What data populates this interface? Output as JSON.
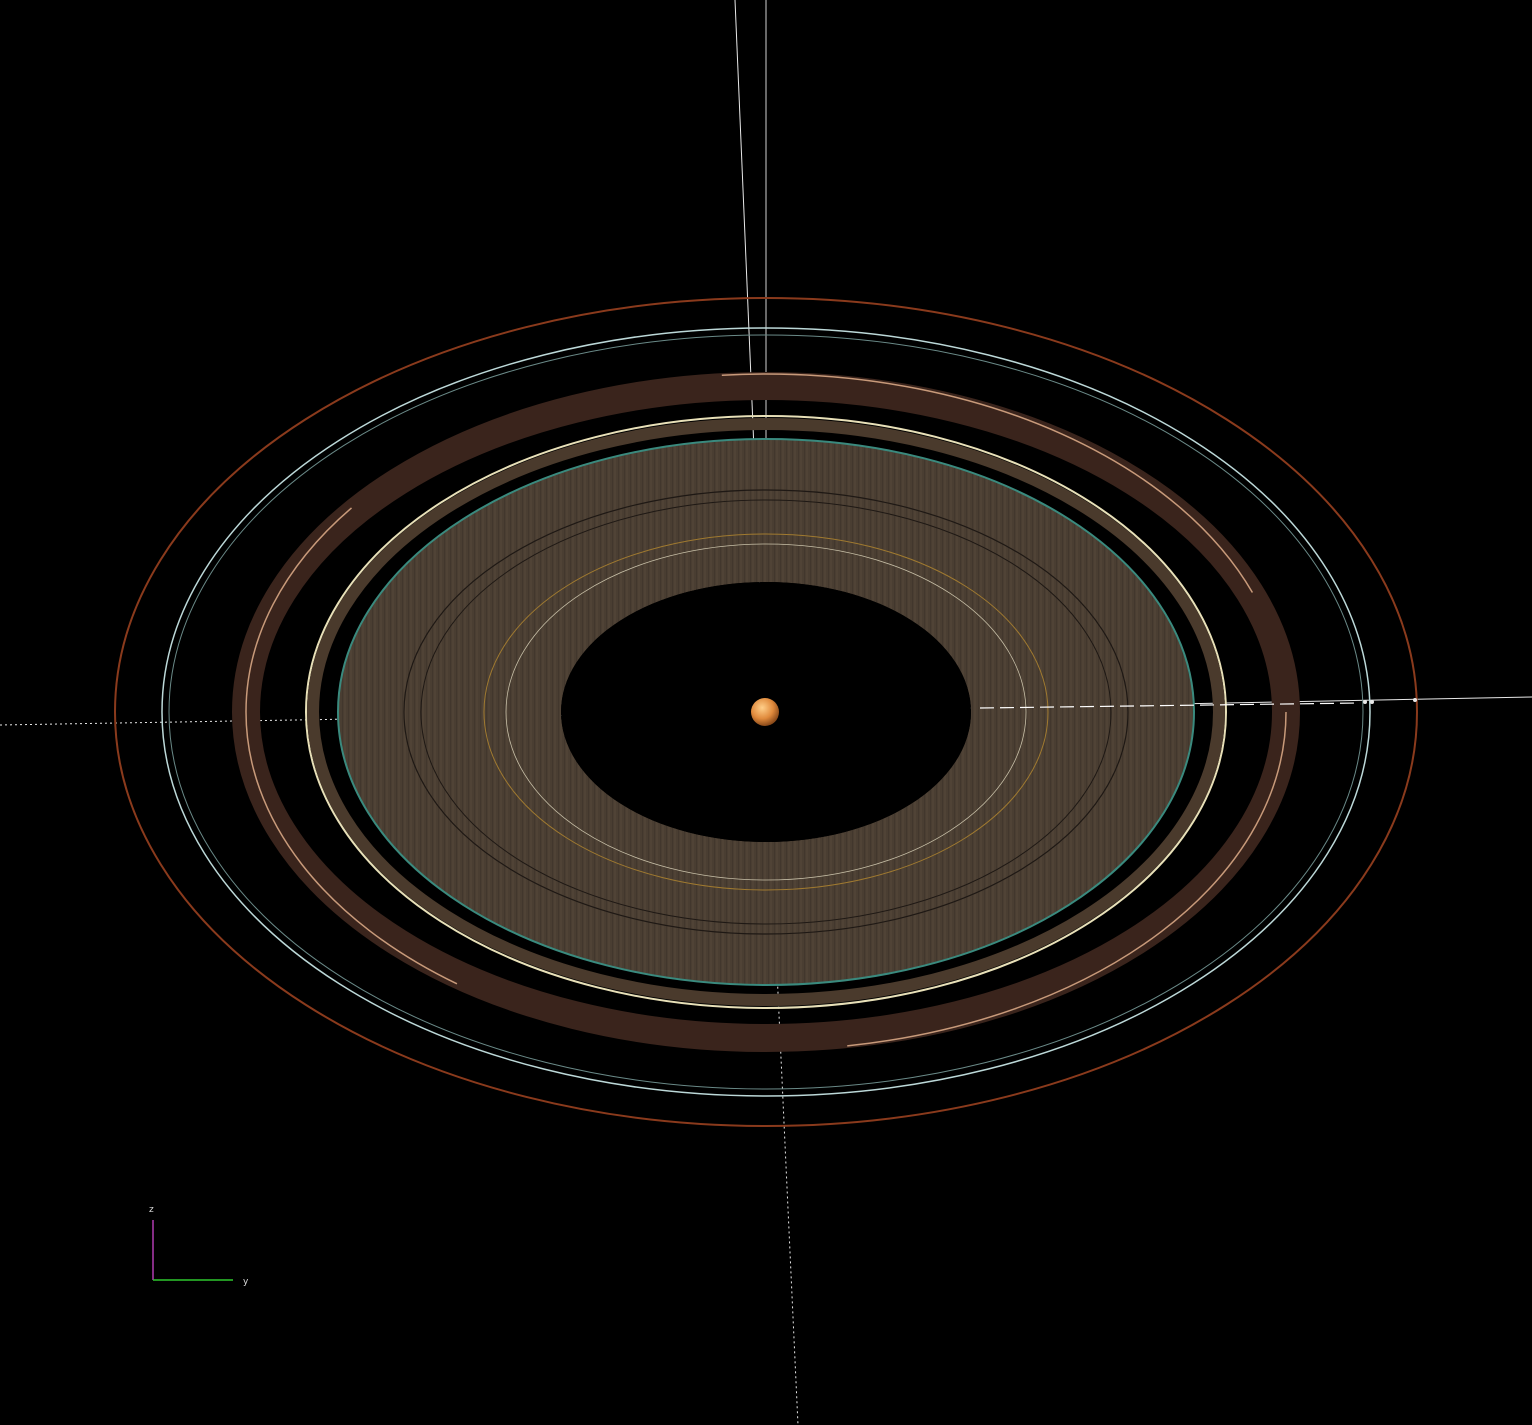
{
  "scene": {
    "background_color": "#000000",
    "planet_color": "#e08a3c",
    "ring_base_color": "#4a3a2c",
    "ring_dark_color": "#3a241c",
    "ring_highlight_color": "#c89a7a",
    "ring_cream_color": "#e8e0b8",
    "ring_teal_color": "#3a8a7e",
    "orbit_outer_color": "#8a3a1c",
    "orbit_light_color": "#bcd8d8",
    "axis_line_color": "#e8e8e8"
  },
  "axis_gizmo": {
    "z_label": "z",
    "y_label": "y",
    "z_color": "#b03ab0",
    "y_color": "#2ec82e"
  }
}
